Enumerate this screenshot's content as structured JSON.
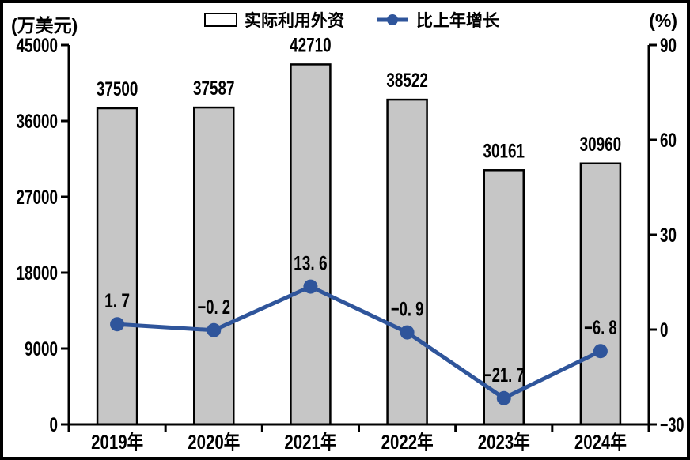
{
  "units": {
    "left": "(万美元)",
    "right": "(%)"
  },
  "colors": {
    "background": "#ffffff",
    "frame_border": "#000000",
    "bar_fill": "#c6c6c6",
    "bar_border": "#000000",
    "line": "#2f559b",
    "text": "#000000"
  },
  "chart_data": {
    "type": "combo",
    "categories": [
      "2019年",
      "2020年",
      "2021年",
      "2022年",
      "2023年",
      "2024年"
    ],
    "series": [
      {
        "name": "实际利用外资",
        "type": "bar",
        "axis": "left",
        "color": "#c6c6c6",
        "border_color": "#000000",
        "values": [
          37500,
          37587,
          42710,
          38522,
          30161,
          30960
        ],
        "labels": [
          "37500",
          "37587",
          "42710",
          "38522",
          "30161",
          "30960"
        ]
      },
      {
        "name": "比上年增长",
        "type": "line",
        "axis": "right",
        "color": "#2f559b",
        "values": [
          1.7,
          -0.2,
          13.6,
          -0.9,
          -21.7,
          -6.8
        ],
        "labels": [
          "1. 7",
          "−0. 2",
          "13. 6",
          "−0. 9",
          "−21. 7",
          "−6. 8"
        ]
      }
    ],
    "left_axis": {
      "unit": "(万美元)",
      "min": 0,
      "max": 45000,
      "ticks": [
        0,
        9000,
        18000,
        27000,
        36000,
        45000
      ]
    },
    "right_axis": {
      "unit": "(%)",
      "min": -30,
      "max": 90,
      "ticks": [
        -30,
        0,
        30,
        60,
        90
      ]
    },
    "grid": false,
    "legend_position": "top-center"
  }
}
